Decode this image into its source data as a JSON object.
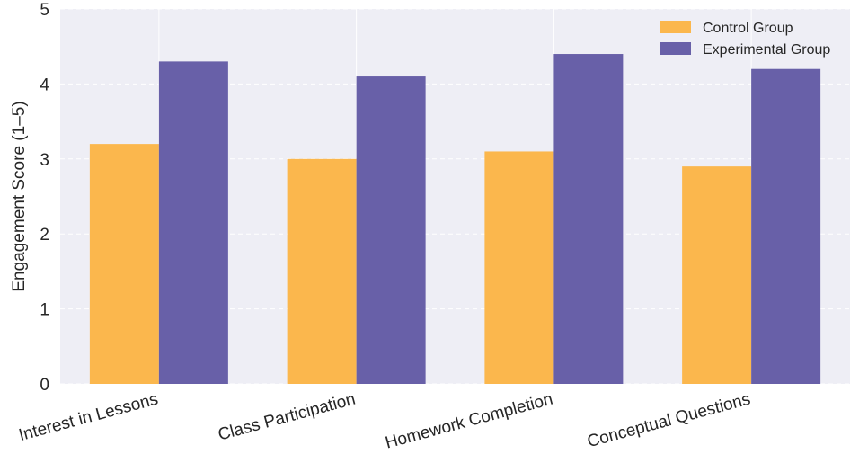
{
  "chart_data": {
    "type": "bar",
    "title": "",
    "xlabel": "",
    "ylabel": "Engagement Score (1–5)",
    "categories": [
      "Interest in Lessons",
      "Class Participation",
      "Homework Completion",
      "Conceptual Questions"
    ],
    "series": [
      {
        "name": "Control Group",
        "color": "#FBB74D",
        "values": [
          3.2,
          3.0,
          3.1,
          2.9
        ]
      },
      {
        "name": "Experimental Group",
        "color": "#6860A8",
        "values": [
          4.3,
          4.1,
          4.4,
          4.2
        ]
      }
    ],
    "ylim": [
      0,
      5
    ],
    "yticks": [
      "0",
      "1",
      "2",
      "3",
      "4",
      "5"
    ],
    "grid": true,
    "legend_position": "top-right",
    "plot_background": "#EEEEF5"
  }
}
